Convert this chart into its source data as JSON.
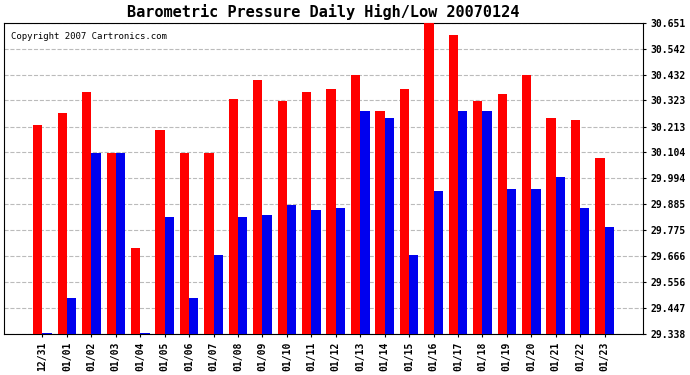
{
  "title": "Barometric Pressure Daily High/Low 20070124",
  "copyright": "Copyright 2007 Cartronics.com",
  "categories": [
    "12/31",
    "01/01",
    "01/02",
    "01/03",
    "01/04",
    "01/05",
    "01/06",
    "01/07",
    "01/08",
    "01/09",
    "01/10",
    "01/11",
    "01/12",
    "01/13",
    "01/14",
    "01/15",
    "01/16",
    "01/17",
    "01/18",
    "01/19",
    "01/20",
    "01/21",
    "01/22",
    "01/23"
  ],
  "highs": [
    30.22,
    30.27,
    30.36,
    30.1,
    29.7,
    30.2,
    30.1,
    30.1,
    30.33,
    30.41,
    30.32,
    30.36,
    30.37,
    30.43,
    30.28,
    30.37,
    30.65,
    30.6,
    30.32,
    30.35,
    30.43,
    30.25,
    30.24,
    30.08
  ],
  "lows": [
    29.34,
    29.49,
    30.1,
    30.1,
    29.34,
    29.83,
    29.49,
    29.67,
    29.83,
    29.84,
    29.88,
    29.86,
    29.87,
    30.28,
    30.25,
    29.67,
    29.94,
    30.28,
    30.28,
    29.95,
    29.95,
    30.0,
    29.87,
    29.79
  ],
  "high_color": "#FF0000",
  "low_color": "#0000EE",
  "bg_color": "#FFFFFF",
  "plot_bg_color": "#FFFFFF",
  "grid_color": "#BBBBBB",
  "ylim_min": 29.338,
  "ylim_max": 30.651,
  "yticks": [
    29.338,
    29.447,
    29.556,
    29.666,
    29.775,
    29.885,
    29.994,
    30.104,
    30.213,
    30.323,
    30.432,
    30.542,
    30.651
  ],
  "title_fontsize": 11,
  "tick_fontsize": 7,
  "copyright_fontsize": 6.5,
  "figwidth": 6.9,
  "figheight": 3.75,
  "dpi": 100
}
